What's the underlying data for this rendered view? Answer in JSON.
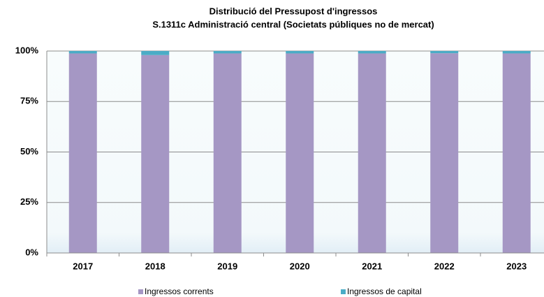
{
  "chart_data": {
    "type": "stacked_bar",
    "title": "Distribució del Pressupost d'ingressos",
    "subtitle": "S.1311c Administració central (Societats públiques no de mercat)",
    "categories": [
      "2017",
      "2018",
      "2019",
      "2020",
      "2021",
      "2022",
      "2023"
    ],
    "series": [
      {
        "name": "Ingressos corrents",
        "color": "#a597c4",
        "values": [
          98.8,
          98.0,
          98.8,
          98.8,
          98.8,
          98.9,
          98.8
        ]
      },
      {
        "name": "Ingressos de capital",
        "color": "#4bacc6",
        "values": [
          1.2,
          2.0,
          1.2,
          1.2,
          1.2,
          1.1,
          1.2
        ]
      }
    ],
    "ylim": [
      0,
      100
    ],
    "yticks": [
      {
        "value": 0,
        "label": "0%"
      },
      {
        "value": 25,
        "label": "25%"
      },
      {
        "value": 50,
        "label": "50%"
      },
      {
        "value": 75,
        "label": "75%"
      },
      {
        "value": 100,
        "label": "100%"
      }
    ],
    "grid": true,
    "legend": "bottom"
  }
}
